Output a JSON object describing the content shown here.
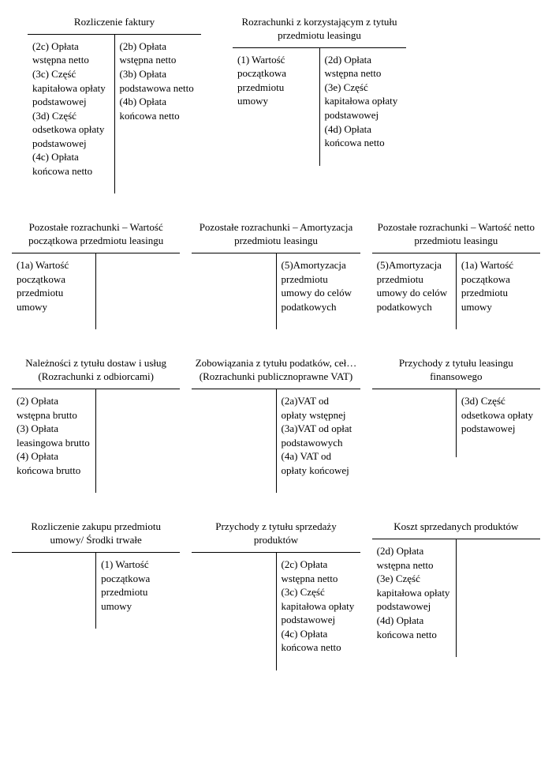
{
  "row1": {
    "a": {
      "title": "Rozliczenie faktury",
      "left": "(2c) Opłata wstępna netto\n(3c) Część kapitałowa opłaty podstawowej\n(3d) Część odsetkowa opłaty podstawowej\n(4c) Opłata końcowa netto",
      "right": "(2b) Opłata wstępna netto\n(3b) Opłata podstawowa netto\n(4b) Opłata końcowa netto"
    },
    "b": {
      "title": "Rozrachunki z korzystającym z tytułu przedmiotu leasingu",
      "left": "(1) Wartość początkowa przedmiotu umowy",
      "right": "(2d) Opłata wstępna netto\n(3e) Część kapitałowa opłaty podstawowej\n(4d) Opłata końcowa netto"
    }
  },
  "row2": {
    "a": {
      "title": "Pozostałe rozrachunki – Wartość początkowa przedmiotu leasingu",
      "left": "(1a) Wartość początkowa przedmiotu umowy",
      "right": ""
    },
    "b": {
      "title": "Pozostałe rozrachunki – Amortyzacja przedmiotu leasingu",
      "left": "",
      "right": "(5)Amortyzacja przedmiotu umowy do celów podatkowych"
    },
    "c": {
      "title": "Pozostałe rozrachunki – Wartość netto przedmiotu leasingu",
      "left": "(5)Amortyzacja przedmiotu umowy do celów podatkowych",
      "right": "(1a) Wartość początkowa przedmiotu umowy"
    }
  },
  "row3": {
    "a": {
      "title": "Należności z tytułu dostaw i usług\n(Rozrachunki z odbiorcami)",
      "left": "(2) Opłata wstępna brutto\n(3) Opłata leasingowa brutto\n(4) Opłata końcowa brutto",
      "right": ""
    },
    "b": {
      "title": "Zobowiązania z tytułu podatków, ceł…\n(Rozrachunki publicznoprawne VAT)",
      "left": "",
      "right": "(2a)VAT od opłaty wstępnej\n(3a)VAT od opłat podstawowych\n(4a) VAT od opłaty końcowej"
    },
    "c": {
      "title": "Przychody z tytułu leasingu finansowego",
      "left": "",
      "right": "(3d) Część odsetkowa opłaty podstawowej"
    }
  },
  "row4": {
    "a": {
      "title": "Rozliczenie zakupu przedmiotu umowy/ Środki trwałe",
      "left": "",
      "right": "(1) Wartość początkowa przedmiotu umowy"
    },
    "b": {
      "title": "Przychody z tytułu sprzedaży produktów",
      "left": "",
      "right": "(2c) Opłata wstępna netto\n(3c) Część kapitałowa opłaty podstawowej\n(4c) Opłata końcowa netto"
    },
    "c": {
      "title": "Koszt sprzedanych produktów",
      "left": "(2d) Opłata wstępna netto\n (3e) Część kapitałowa opłaty podstawowej\n(4d) Opłata końcowa netto",
      "right": ""
    }
  }
}
